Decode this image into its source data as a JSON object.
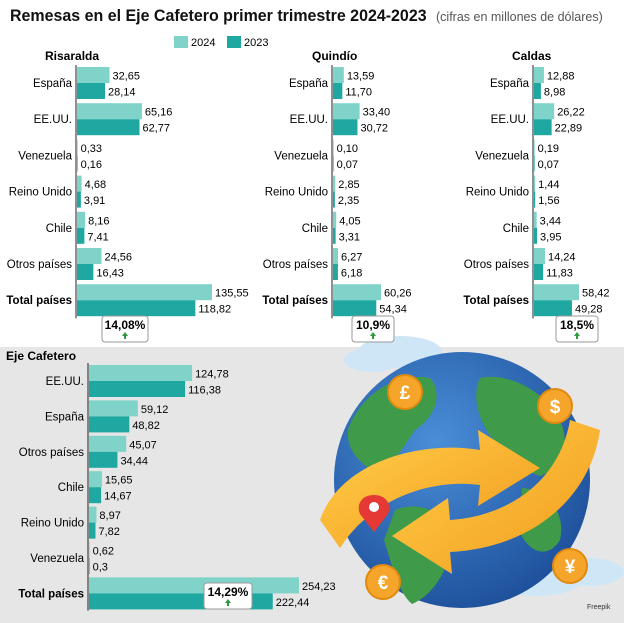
{
  "header": {
    "title": "Remesas en el Eje Cafetero primer trimestre 2024-2023",
    "subtitle": "(cifras en millones de dólares)"
  },
  "colors": {
    "y2024": "#7fd3c9",
    "y2023": "#1fa7a1",
    "growth_arrow": "#2e9a3c"
  },
  "legend": {
    "label_2024": "2024",
    "label_2023": "2023"
  },
  "credit": "Freepik",
  "chart_data": [
    {
      "type": "bar",
      "orientation": "horizontal",
      "title": "Risaralda",
      "categories": [
        "España",
        "EE.UU.",
        "Venezuela",
        "Reino Unido",
        "Chile",
        "Otros países",
        "Total países"
      ],
      "series": [
        {
          "name": "2024",
          "values": [
            32.65,
            65.16,
            0.33,
            4.68,
            8.16,
            24.56,
            135.55
          ],
          "labels": [
            "32,65",
            "65,16",
            "0,33",
            "4,68",
            "8,16",
            "24,56",
            "135,55"
          ]
        },
        {
          "name": "2023",
          "values": [
            28.14,
            62.77,
            0.16,
            3.91,
            7.41,
            16.43,
            118.82
          ],
          "labels": [
            "28,14",
            "62,77",
            "0,16",
            "3,91",
            "7,41",
            "16,43",
            "118,82"
          ]
        }
      ],
      "growth": "14,08%"
    },
    {
      "type": "bar",
      "orientation": "horizontal",
      "title": "Quindío",
      "categories": [
        "España",
        "EE.UU.",
        "Venezuela",
        "Reino Unido",
        "Chile",
        "Otros países",
        "Total países"
      ],
      "series": [
        {
          "name": "2024",
          "values": [
            13.59,
            33.4,
            0.1,
            2.85,
            4.05,
            6.27,
            60.26
          ],
          "labels": [
            "13,59",
            "33,40",
            "0,10",
            "2,85",
            "4,05",
            "6,27",
            "60,26"
          ]
        },
        {
          "name": "2023",
          "values": [
            11.7,
            30.72,
            0.07,
            2.35,
            3.31,
            6.18,
            54.34
          ],
          "labels": [
            "11,70",
            "30,72",
            "0,07",
            "2,35",
            "3,31",
            "6,18",
            "54,34"
          ]
        }
      ],
      "growth": "10,9%"
    },
    {
      "type": "bar",
      "orientation": "horizontal",
      "title": "Caldas",
      "categories": [
        "España",
        "EE.UU.",
        "Venezuela",
        "Reino Unido",
        "Chile",
        "Otros países",
        "Total países"
      ],
      "series": [
        {
          "name": "2024",
          "values": [
            12.88,
            26.22,
            0.19,
            1.44,
            3.44,
            14.24,
            58.42
          ],
          "labels": [
            "12,88",
            "26,22",
            "0,19",
            "1,44",
            "3,44",
            "14,24",
            "58,42"
          ]
        },
        {
          "name": "2023",
          "values": [
            8.98,
            22.89,
            0.07,
            1.56,
            3.95,
            11.83,
            49.28
          ],
          "labels": [
            "8,98",
            "22,89",
            "0,07",
            "1,56",
            "3,95",
            "11,83",
            "49,28"
          ]
        }
      ],
      "growth": "18,5%"
    },
    {
      "type": "bar",
      "orientation": "horizontal",
      "title": "Eje Cafetero",
      "categories": [
        "EE.UU.",
        "España",
        "Otros países",
        "Chile",
        "Reino Unido",
        "Venezuela",
        "Total países"
      ],
      "series": [
        {
          "name": "2024",
          "values": [
            124.78,
            59.12,
            45.07,
            15.65,
            8.97,
            0.62,
            254.23
          ],
          "labels": [
            "124,78",
            "59,12",
            "45,07",
            "15,65",
            "8,97",
            "0,62",
            "254,23"
          ]
        },
        {
          "name": "2023",
          "values": [
            116.38,
            48.82,
            34.44,
            14.67,
            7.82,
            0.3,
            222.44
          ],
          "labels": [
            "116,38",
            "48,82",
            "34,44",
            "14,67",
            "7,82",
            "0,3",
            "222,44"
          ]
        }
      ],
      "growth": "14,29%"
    }
  ]
}
